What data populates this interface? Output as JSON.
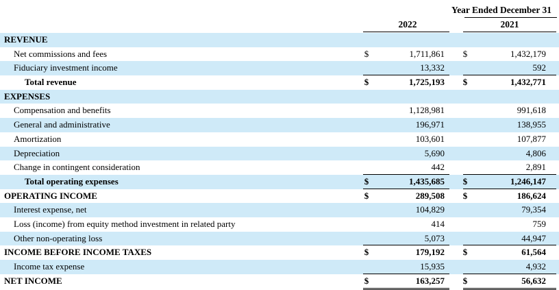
{
  "header": {
    "period": "Year Ended December 31",
    "col_2022": "2022",
    "col_2021": "2021"
  },
  "rows": [
    {
      "label": "REVENUE",
      "type": "section",
      "shade": true
    },
    {
      "label": "Net commissions and fees",
      "type": "item",
      "cur22": "$",
      "v22": "1,711,861",
      "cur21": "$",
      "v21": "1,432,179",
      "shade": false
    },
    {
      "label": "Fiduciary investment income",
      "type": "item",
      "v22": "13,332",
      "v21": "592",
      "shade": true,
      "underline": true
    },
    {
      "label": "Total revenue",
      "type": "total",
      "cur22": "$",
      "v22": "1,725,193",
      "cur21": "$",
      "v21": "1,432,771",
      "shade": false
    },
    {
      "label": "EXPENSES",
      "type": "section",
      "shade": true
    },
    {
      "label": "Compensation and benefits",
      "type": "item",
      "v22": "1,128,981",
      "v21": "991,618",
      "shade": false
    },
    {
      "label": "General and administrative",
      "type": "item",
      "v22": "196,971",
      "v21": "138,955",
      "shade": true
    },
    {
      "label": "Amortization",
      "type": "item",
      "v22": "103,601",
      "v21": "107,877",
      "shade": false
    },
    {
      "label": "Depreciation",
      "type": "item",
      "v22": "5,690",
      "v21": "4,806",
      "shade": true
    },
    {
      "label": "Change in contingent consideration",
      "type": "item",
      "v22": "442",
      "v21": "2,891",
      "shade": false,
      "underline": true
    },
    {
      "label": "Total operating expenses",
      "type": "total",
      "cur22": "$",
      "v22": "1,435,685",
      "cur21": "$",
      "v21": "1,246,147",
      "shade": true,
      "underline": true
    },
    {
      "label": "OPERATING INCOME",
      "type": "boldrow",
      "cur22": "$",
      "v22": "289,508",
      "cur21": "$",
      "v21": "186,624",
      "shade": false
    },
    {
      "label": "Interest expense, net",
      "type": "item",
      "v22": "104,829",
      "v21": "79,354",
      "shade": true
    },
    {
      "label": "Loss (income) from equity method investment in related party",
      "type": "item",
      "v22": "414",
      "v21": "759",
      "shade": false
    },
    {
      "label": "Other non-operating loss",
      "type": "item",
      "v22": "5,073",
      "v21": "44,947",
      "shade": true,
      "underline": true
    },
    {
      "label": "INCOME BEFORE INCOME TAXES",
      "type": "boldrow",
      "cur22": "$",
      "v22": "179,192",
      "cur21": "$",
      "v21": "61,564",
      "shade": false
    },
    {
      "label": "Income tax expense",
      "type": "item",
      "v22": "15,935",
      "v21": "4,932",
      "shade": true,
      "underline": true
    },
    {
      "label": "NET INCOME",
      "type": "boldrow",
      "cur22": "$",
      "v22": "163,257",
      "cur21": "$",
      "v21": "56,632",
      "shade": false,
      "double": true
    }
  ]
}
